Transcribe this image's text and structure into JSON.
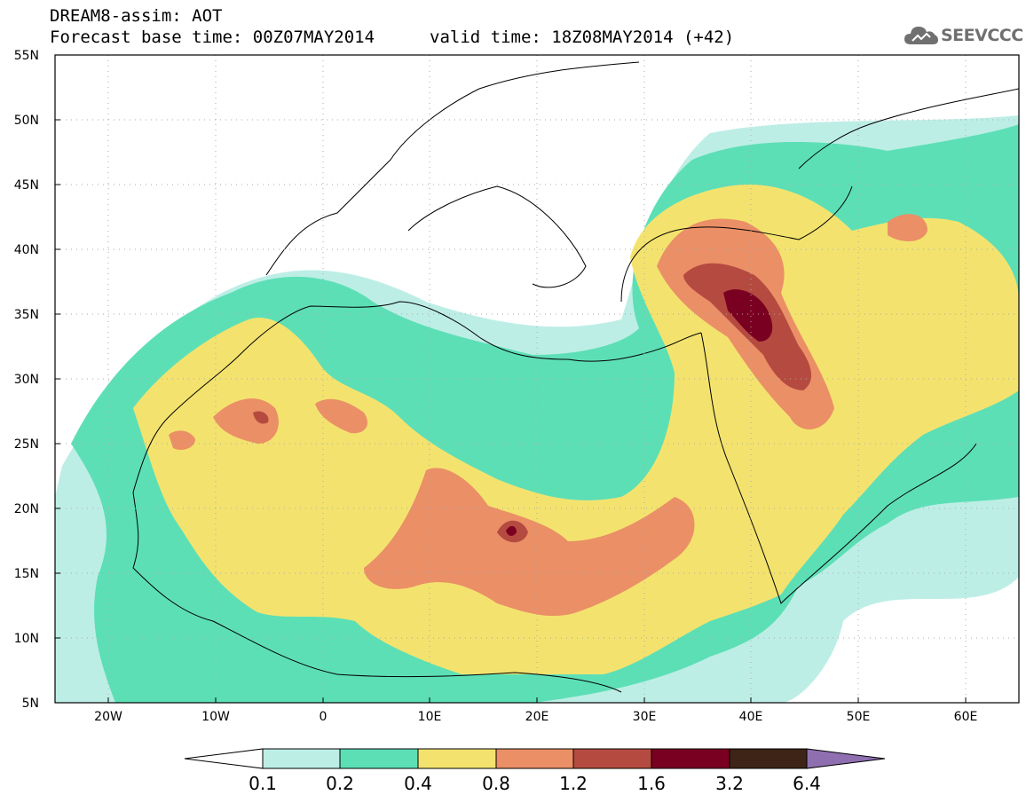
{
  "header": {
    "line1": "DREAM8-assim: AOT",
    "line2": "Forecast base time: 00Z07MAY2014",
    "valid": "valid time: 18Z08MAY2014 (+42)"
  },
  "logo": {
    "text": "SEEVCCC",
    "icon": "cloud-logo-icon"
  },
  "map": {
    "variable": "AOT",
    "extent": {
      "lon": [
        -25,
        65
      ],
      "lat": [
        5,
        55
      ]
    },
    "lat_ticks": [
      "55N",
      "50N",
      "45N",
      "40N",
      "35N",
      "30N",
      "25N",
      "20N",
      "15N",
      "10N",
      "5N"
    ],
    "lon_ticks": [
      "20W",
      "10W",
      "0",
      "10E",
      "20E",
      "30E",
      "40E",
      "50E",
      "60E"
    ],
    "grid": "dotted"
  },
  "colorbar": {
    "labels": [
      "0.1",
      "0.2",
      "0.4",
      "0.8",
      "1.2",
      "1.6",
      "3.2",
      "6.4"
    ],
    "colors": [
      "#ffffff",
      "#bdeee6",
      "#5ddfb6",
      "#f3e36e",
      "#eb8f67",
      "#b54b40",
      "#7a0021",
      "#3d2416",
      "#8f6fb0"
    ]
  }
}
